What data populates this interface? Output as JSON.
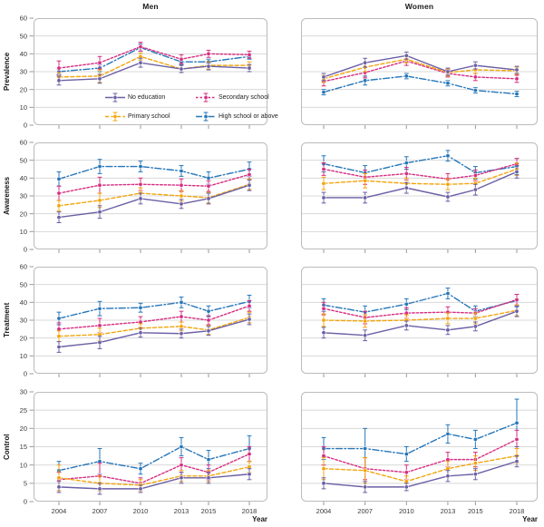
{
  "figure": {
    "column_titles": [
      "Men",
      "Women"
    ],
    "xaxis_label": "Year"
  },
  "chart_data": {
    "type": "line",
    "x": [
      2004,
      2007,
      2010,
      2013,
      2015,
      2018
    ],
    "xlabel": "Year",
    "columns": [
      "Men",
      "Women"
    ],
    "grid": "horizontal-only",
    "legend_position": "inside-top-left-panel",
    "rows": [
      {
        "label": "Prevalence",
        "ylim": [
          0,
          60
        ],
        "yticks": [
          0,
          10,
          20,
          30,
          40,
          50,
          60
        ]
      },
      {
        "label": "Awareness",
        "ylim": [
          0,
          60
        ],
        "yticks": [
          0,
          10,
          20,
          30,
          40,
          50,
          60
        ]
      },
      {
        "label": "Treatment",
        "ylim": [
          0,
          60
        ],
        "yticks": [
          0,
          10,
          20,
          30,
          40,
          50,
          60
        ]
      },
      {
        "label": "Control",
        "ylim": [
          0,
          30
        ],
        "yticks": [
          0,
          5,
          10,
          15,
          20,
          25,
          30
        ]
      }
    ],
    "series_meta": [
      {
        "id": "no_education",
        "name": "No education",
        "color": "#6B5FA5",
        "dash": "solid"
      },
      {
        "id": "primary",
        "name": "Primary school",
        "color": "#F2A50C",
        "dash": "dashed"
      },
      {
        "id": "secondary",
        "name": "Secondary school",
        "color": "#D62E82",
        "dash": "finedash"
      },
      {
        "id": "high_school",
        "name": "High school or above",
        "color": "#2676B8",
        "dash": "dashdot"
      }
    ],
    "panels": {
      "prevalence_men": {
        "series": [
          {
            "id": "no_education",
            "values": [
              25,
              26,
              35,
              31.5,
              33,
              32
            ],
            "err": [
              2.5,
              2.5,
              2.5,
              2,
              2,
              2
            ]
          },
          {
            "id": "primary",
            "values": [
              27,
              27.5,
              38.5,
              31.5,
              33.5,
              33.5
            ],
            "err": [
              2.5,
              3.5,
              2,
              2,
              2,
              2
            ]
          },
          {
            "id": "secondary",
            "values": [
              32,
              35,
              44,
              37,
              40,
              39.5
            ],
            "err": [
              4,
              3.5,
              2.5,
              2.5,
              2,
              2
            ]
          },
          {
            "id": "high_school",
            "values": [
              30,
              32,
              43.5,
              35.5,
              35.5,
              38.5
            ],
            "err": [
              1.5,
              2,
              2,
              1.5,
              1.5,
              1.5
            ]
          }
        ]
      },
      "prevalence_women": {
        "series": [
          {
            "id": "no_education",
            "values": [
              27,
              35,
              39,
              30,
              33.5,
              31
            ],
            "err": [
              2,
              2.5,
              2,
              2,
              2,
              2
            ]
          },
          {
            "id": "primary",
            "values": [
              26,
              32.5,
              37,
              29.5,
              31,
              30.5
            ],
            "err": [
              2,
              2.5,
              2,
              2,
              2,
              2
            ]
          },
          {
            "id": "secondary",
            "values": [
              24.5,
              29.5,
              36,
              29,
              27,
              26
            ],
            "err": [
              2.5,
              3,
              2.5,
              2,
              2,
              2
            ]
          },
          {
            "id": "high_school",
            "values": [
              18.5,
              25,
              27.5,
              23.5,
              19.5,
              17.5
            ],
            "err": [
              1.5,
              2.5,
              1.5,
              1.5,
              1.5,
              1.5
            ]
          }
        ]
      },
      "awareness_men": {
        "series": [
          {
            "id": "no_education",
            "values": [
              18,
              21,
              28.5,
              25.5,
              28.5,
              36
            ],
            "err": [
              3,
              3.5,
              3,
              2.5,
              3,
              3
            ]
          },
          {
            "id": "primary",
            "values": [
              24.5,
              27.5,
              31.5,
              30,
              29,
              36.5
            ],
            "err": [
              3,
              4,
              3,
              3,
              3,
              3
            ]
          },
          {
            "id": "secondary",
            "values": [
              31.5,
              36,
              36.5,
              36,
              35.5,
              42
            ],
            "err": [
              4,
              4.5,
              3.5,
              3.5,
              3,
              3
            ]
          },
          {
            "id": "high_school",
            "values": [
              39.5,
              46.5,
              46.5,
              44,
              40,
              45
            ],
            "err": [
              4,
              4,
              3,
              3,
              3.5,
              4
            ]
          }
        ]
      },
      "awareness_women": {
        "series": [
          {
            "id": "no_education",
            "values": [
              29,
              29,
              34.5,
              29.5,
              33.5,
              43.5
            ],
            "err": [
              3,
              3,
              3,
              2.5,
              3,
              3.5
            ]
          },
          {
            "id": "primary",
            "values": [
              37,
              38.5,
              37,
              36.5,
              37,
              45
            ],
            "err": [
              3.5,
              4,
              3,
              3,
              3,
              3.5
            ]
          },
          {
            "id": "secondary",
            "values": [
              45,
              40.5,
              42.5,
              39.5,
              41.5,
              48
            ],
            "err": [
              3.5,
              4,
              3.5,
              3,
              3,
              3
            ]
          },
          {
            "id": "high_school",
            "values": [
              48,
              43,
              48.5,
              52.5,
              43,
              46.5
            ],
            "err": [
              4.5,
              4,
              3.5,
              3,
              3.5,
              4.5
            ]
          }
        ]
      },
      "treatment_men": {
        "series": [
          {
            "id": "no_education",
            "values": [
              15,
              17.5,
              23,
              22.5,
              24,
              30.5
            ],
            "err": [
              3,
              3.5,
              2.5,
              2.5,
              2.5,
              3
            ]
          },
          {
            "id": "primary",
            "values": [
              21,
              22,
              25.5,
              26.5,
              24.5,
              31.5
            ],
            "err": [
              3,
              3.5,
              2.5,
              2.5,
              2.5,
              3
            ]
          },
          {
            "id": "secondary",
            "values": [
              25,
              27,
              29,
              32,
              30,
              38
            ],
            "err": [
              3.5,
              4,
              3,
              3,
              2.5,
              3
            ]
          },
          {
            "id": "high_school",
            "values": [
              31,
              36.5,
              37,
              40,
              35,
              40.5
            ],
            "err": [
              3.5,
              4,
              2.5,
              3,
              3,
              3.5
            ]
          }
        ]
      },
      "treatment_women": {
        "series": [
          {
            "id": "no_education",
            "values": [
              23,
              21.5,
              27,
              24.5,
              26.5,
              35
            ],
            "err": [
              3,
              3,
              2.5,
              2.5,
              2.5,
              3
            ]
          },
          {
            "id": "primary",
            "values": [
              30,
              29.5,
              30,
              31,
              31,
              35.5
            ],
            "err": [
              3.5,
              3.5,
              3,
              3,
              3,
              3
            ]
          },
          {
            "id": "secondary",
            "values": [
              36.5,
              31.5,
              34,
              34.5,
              34,
              41.5
            ],
            "err": [
              3.5,
              3.5,
              3,
              3,
              2.5,
              3
            ]
          },
          {
            "id": "high_school",
            "values": [
              38.5,
              34.5,
              39,
              45,
              35,
              41
            ],
            "err": [
              3.5,
              3.5,
              3,
              3,
              3,
              3.5
            ]
          }
        ]
      },
      "control_men": {
        "series": [
          {
            "id": "no_education",
            "values": [
              4,
              3.5,
              3.5,
              6.5,
              6.5,
              7.5
            ],
            "err": [
              1.5,
              1.5,
              1,
              1.5,
              1.5,
              1.5
            ]
          },
          {
            "id": "primary",
            "values": [
              6.5,
              5,
              4.5,
              7,
              7,
              9.5
            ],
            "err": [
              3.5,
              2,
              1.5,
              1.5,
              1.5,
              1.5
            ]
          },
          {
            "id": "secondary",
            "values": [
              6,
              7,
              5,
              10,
              8,
              13
            ],
            "err": [
              2,
              3.5,
              1.5,
              2,
              2,
              2
            ]
          },
          {
            "id": "high_school",
            "values": [
              8.5,
              11,
              9,
              15,
              11.5,
              14.5
            ],
            "err": [
              2.5,
              3.5,
              1.5,
              2.5,
              2.5,
              3.5
            ]
          }
        ]
      },
      "control_women": {
        "series": [
          {
            "id": "no_education",
            "values": [
              5,
              4,
              4,
              7,
              7.5,
              11
            ],
            "err": [
              1.5,
              1.5,
              1,
              1.5,
              1.5,
              1.5
            ]
          },
          {
            "id": "primary",
            "values": [
              9,
              8.5,
              5.5,
              9,
              10.5,
              12.5
            ],
            "err": [
              3,
              3.5,
              1.5,
              2,
              2,
              2
            ]
          },
          {
            "id": "secondary",
            "values": [
              12.5,
              9,
              8,
              11.5,
              11.5,
              17
            ],
            "err": [
              2.5,
              3,
              2,
              2,
              2,
              2.5
            ]
          },
          {
            "id": "high_school",
            "values": [
              14.5,
              14.5,
              13,
              18.5,
              17,
              21.5
            ],
            "err": [
              3,
              5.5,
              2,
              2.5,
              2.5,
              6.5
            ]
          }
        ]
      }
    },
    "style": {
      "grid_color": "#D8D8D8",
      "border_color": "#BBBBBB",
      "tick_color": "#9A9A9A",
      "text_color": "#3A3A3A"
    }
  }
}
